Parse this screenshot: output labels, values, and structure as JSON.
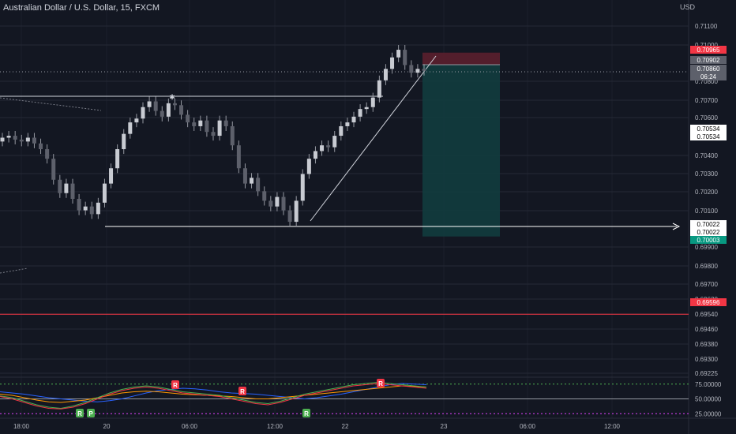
{
  "header": {
    "title": "Australian Dollar / U.S. Dollar, 15, FXCM",
    "currency": "USD"
  },
  "colors": {
    "background": "#131722",
    "grid": "#242836",
    "text": "#b2b5be",
    "candle": "#9598a1",
    "red_line": "#f23645",
    "green_line": "#26a69a",
    "stop_zone": "#5b1f2e",
    "target_zone": "#123c3e",
    "white": "#ffffff"
  },
  "chart_data": [
    {
      "type": "candlestick",
      "title": "Australian Dollar / U.S. Dollar, 15, FXCM",
      "y_axis": {
        "unit": "USD",
        "range": [
          0.69225,
          0.7115
        ],
        "ticks": [
          "0.71100",
          "0.71000",
          "0.70800",
          "0.70700",
          "0.70600",
          "0.70400",
          "0.70300",
          "0.70200",
          "0.70100",
          "0.69900",
          "0.69800",
          "0.69700",
          "0.69620",
          "0.69540",
          "0.69460",
          "0.69380",
          "0.69300",
          "0.69225"
        ]
      },
      "x_axis": {
        "ticks": [
          "18:00",
          "20",
          "06:00",
          "12:00",
          "22",
          "23",
          "06:00",
          "12:00"
        ]
      },
      "price_labels": [
        {
          "value": "0.70965",
          "style": "red"
        },
        {
          "value": "0.70902",
          "style": "gray"
        },
        {
          "value": "0.70860",
          "style": "gray"
        },
        {
          "value": "06:24",
          "style": "gray"
        },
        {
          "value": "0.70534",
          "style": "white"
        },
        {
          "value": "0.70534",
          "style": "white"
        },
        {
          "value": "0.70022",
          "style": "white"
        },
        {
          "value": "0.70022",
          "style": "white"
        },
        {
          "value": "0.70003",
          "style": "green"
        },
        {
          "value": "0.69596",
          "style": "red"
        }
      ],
      "levels": [
        {
          "name": "stop",
          "value": 0.70965
        },
        {
          "name": "entry",
          "value": 0.70902
        },
        {
          "name": "target",
          "value": 0.70003
        },
        {
          "name": "swing-low",
          "value": 0.70022
        },
        {
          "name": "resistance",
          "value": 0.69596
        }
      ],
      "close_series": [
        0.7052,
        0.7053,
        0.7051,
        0.705,
        0.7052,
        0.7049,
        0.7046,
        0.7041,
        0.703,
        0.7023,
        0.7028,
        0.702,
        0.7014,
        0.7016,
        0.7012,
        0.7018,
        0.7028,
        0.7036,
        0.7046,
        0.7054,
        0.706,
        0.7062,
        0.7068,
        0.7071,
        0.7066,
        0.7063,
        0.707,
        0.7069,
        0.7064,
        0.706,
        0.7058,
        0.7061,
        0.7055,
        0.7053,
        0.7061,
        0.7058,
        0.7048,
        0.7036,
        0.7028,
        0.7031,
        0.7024,
        0.7019,
        0.7016,
        0.7021,
        0.7014,
        0.7008,
        0.7019,
        0.7033,
        0.7041,
        0.7045,
        0.7048,
        0.7047,
        0.7053,
        0.7058,
        0.706,
        0.7063,
        0.7067,
        0.7068,
        0.7073,
        0.7082,
        0.7088,
        0.7094,
        0.7098,
        0.709,
        0.7086,
        0.7088,
        0.7087
      ]
    },
    {
      "type": "line",
      "title": "",
      "y_axis": {
        "ticks": [
          "75.00000",
          "50.00000",
          "25.00000"
        ],
        "range": [
          20,
          80
        ]
      },
      "markers": [
        "R",
        "P",
        "R",
        "R",
        "R",
        "R"
      ],
      "series": [
        {
          "color": "#2962ff",
          "values": [
            62,
            60,
            58,
            55,
            52,
            50,
            48,
            46,
            45,
            47,
            50,
            55,
            60,
            64,
            66,
            68,
            67,
            65,
            62,
            60,
            59,
            58,
            56,
            54,
            52,
            50,
            52,
            55,
            58,
            62,
            66,
            70,
            74,
            76,
            75,
            74
          ]
        },
        {
          "color": "#ff9800",
          "values": [
            58,
            56,
            52,
            48,
            45,
            44,
            46,
            48,
            52,
            56,
            60,
            62,
            63,
            62,
            60,
            58,
            57,
            56,
            55,
            54,
            52,
            50,
            50,
            52,
            54,
            56,
            58,
            60,
            62,
            64,
            66,
            68,
            70,
            72,
            71,
            70
          ]
        },
        {
          "color": "#4caf50",
          "values": [
            55,
            52,
            46,
            40,
            36,
            34,
            38,
            44,
            52,
            60,
            66,
            70,
            72,
            70,
            66,
            62,
            60,
            58,
            56,
            52,
            48,
            44,
            42,
            46,
            52,
            58,
            62,
            66,
            70,
            74,
            76,
            78,
            76,
            74,
            72,
            70
          ]
        },
        {
          "color": "#f23645",
          "values": [
            54,
            50,
            44,
            38,
            34,
            33,
            36,
            42,
            50,
            58,
            64,
            68,
            70,
            68,
            64,
            60,
            58,
            56,
            54,
            50,
            46,
            42,
            40,
            44,
            50,
            56,
            60,
            64,
            68,
            72,
            74,
            76,
            74,
            72,
            70,
            68
          ]
        }
      ]
    }
  ]
}
